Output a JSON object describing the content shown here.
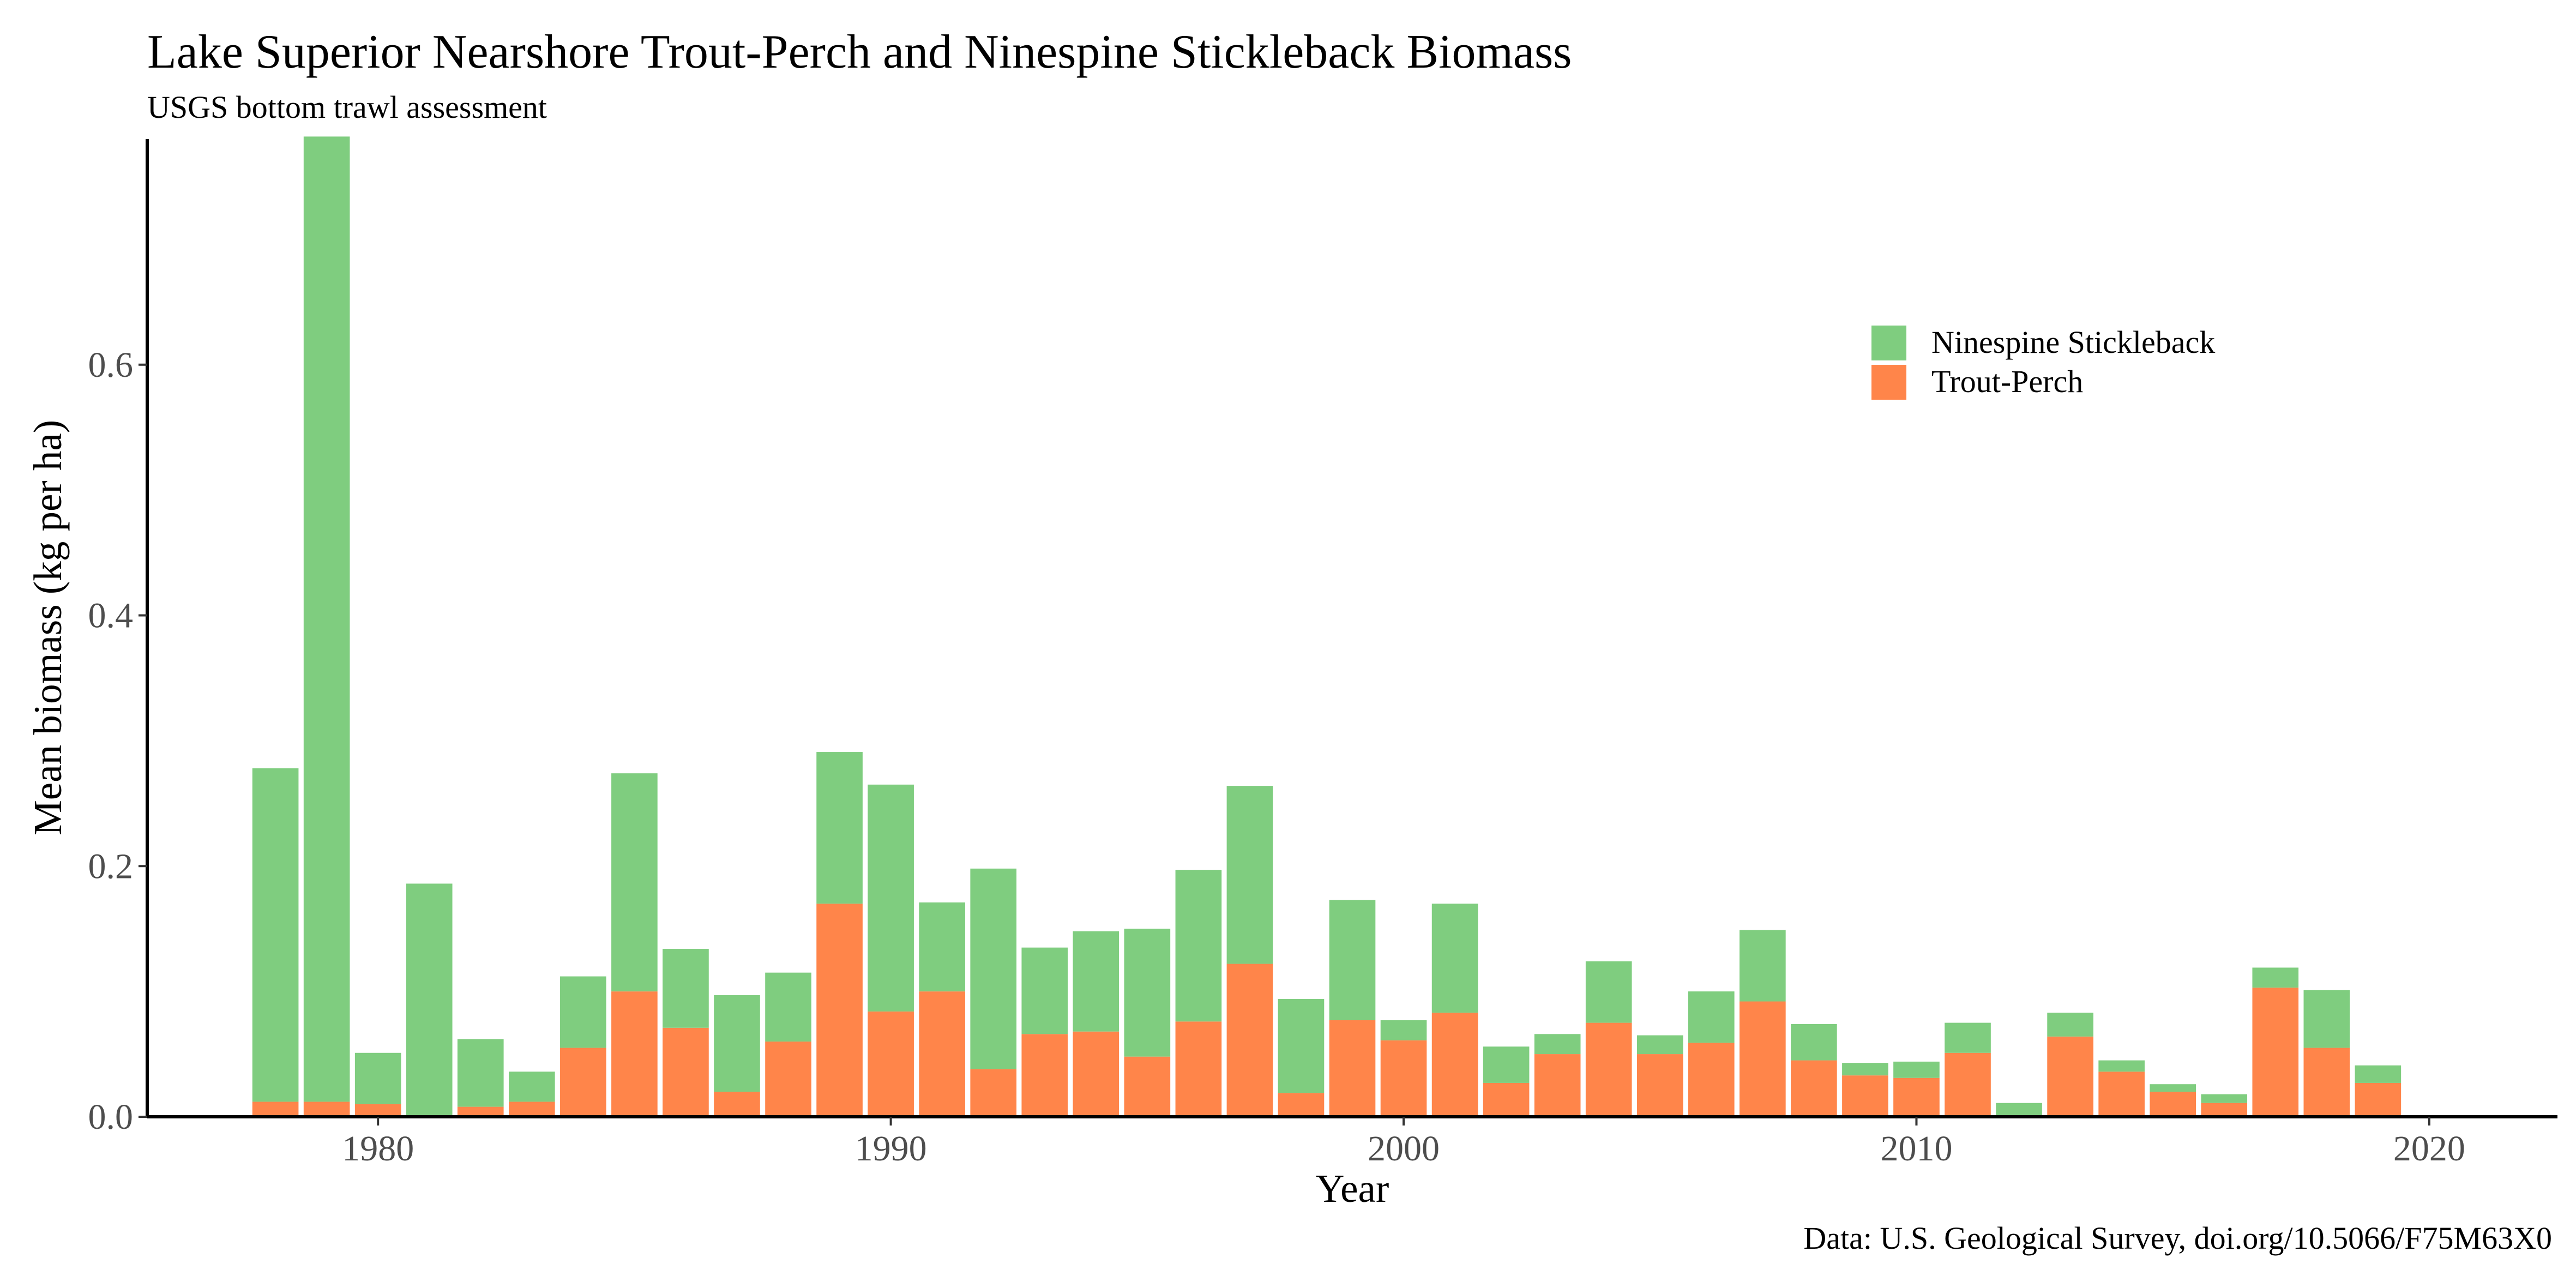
{
  "chart_data": {
    "type": "bar",
    "stacked": true,
    "title": "Lake Superior Nearshore Trout-Perch and Ninespine Stickleback Biomass",
    "subtitle": "USGS bottom trawl assessment",
    "xlabel": "Year",
    "ylabel": "Mean biomass (kg per ha)",
    "caption": "Data: U.S. Geological Survey, doi.org/10.5066/F75M63X0",
    "xlim": [
      1975.5,
      2022.5
    ],
    "ylim": [
      0,
      0.78
    ],
    "xticks": [
      1980,
      1990,
      2000,
      2010,
      2020
    ],
    "yticks": [
      0.0,
      0.2,
      0.4,
      0.6
    ],
    "ytick_labels": [
      "0.0",
      "0.2",
      "0.4",
      "0.6"
    ],
    "grid": false,
    "legend_position": "top-right (inside plot)",
    "legend": [
      {
        "label": "Ninespine Stickleback",
        "color": "#7FCD7F"
      },
      {
        "label": "Trout-Perch",
        "color": "#FF854A"
      }
    ],
    "x": [
      1978,
      1979,
      1980,
      1981,
      1982,
      1983,
      1984,
      1985,
      1986,
      1987,
      1988,
      1989,
      1990,
      1991,
      1992,
      1993,
      1994,
      1995,
      1996,
      1997,
      1998,
      1999,
      2000,
      2001,
      2002,
      2003,
      2004,
      2005,
      2006,
      2007,
      2008,
      2009,
      2010,
      2011,
      2012,
      2013,
      2014,
      2015,
      2016,
      2017,
      2018,
      2019
    ],
    "series": [
      {
        "name": "Trout-Perch",
        "color": "#FF854A",
        "values": [
          0.012,
          0.012,
          0.01,
          0.0,
          0.008,
          0.012,
          0.055,
          0.1,
          0.071,
          0.02,
          0.06,
          0.17,
          0.084,
          0.1,
          0.038,
          0.066,
          0.068,
          0.048,
          0.076,
          0.122,
          0.019,
          0.077,
          0.061,
          0.083,
          0.027,
          0.05,
          0.075,
          0.05,
          0.059,
          0.092,
          0.045,
          0.033,
          0.031,
          0.051,
          0.0,
          0.064,
          0.036,
          0.02,
          0.011,
          0.103,
          0.055,
          0.027
        ]
      },
      {
        "name": "Ninespine Stickleback",
        "color": "#7FCD7F",
        "values": [
          0.266,
          0.77,
          0.041,
          0.186,
          0.054,
          0.024,
          0.057,
          0.174,
          0.063,
          0.077,
          0.055,
          0.121,
          0.181,
          0.071,
          0.16,
          0.069,
          0.08,
          0.102,
          0.121,
          0.142,
          0.075,
          0.096,
          0.016,
          0.087,
          0.029,
          0.016,
          0.049,
          0.015,
          0.041,
          0.057,
          0.029,
          0.01,
          0.013,
          0.024,
          0.011,
          0.019,
          0.009,
          0.006,
          0.007,
          0.016,
          0.046,
          0.014
        ]
      }
    ]
  }
}
